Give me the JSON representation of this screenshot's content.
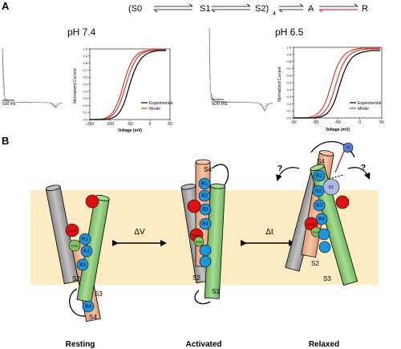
{
  "panel_a": {
    "label": "A",
    "scheme": {
      "s0": "(S0",
      "s1": "S1",
      "s2": "S2)",
      "sub4": "4",
      "a": "A",
      "r": "R"
    },
    "ph74": {
      "title": "pH 7.4",
      "scale_bar": "500 ms",
      "ylabel": "Normalized Current",
      "xlabel": "Voltage (mV)",
      "yticks": [
        "0.0",
        "0.1",
        "0.2",
        "0.3",
        "0.4",
        "0.5",
        "0.6",
        "0.7",
        "0.8",
        "0.9",
        "1.0"
      ],
      "xticks": [
        "-150",
        "-100",
        "-50",
        "0",
        "50"
      ],
      "legend": [
        "Experimental",
        "Model"
      ]
    },
    "ph65": {
      "title": "pH 6.5",
      "scale_bar": "500 ms",
      "ylabel": "Normalized Current",
      "xlabel": "Voltage (mV)",
      "yticks": [
        "0.0",
        "0.1",
        "0.2",
        "0.3",
        "0.4",
        "0.5",
        "0.6",
        "0.7",
        "0.8",
        "0.9",
        "1.0"
      ],
      "xticks": [
        "-50",
        "-50",
        "-50",
        "0",
        "50"
      ],
      "legend": [
        "Experimental",
        "Model"
      ]
    }
  },
  "panel_b": {
    "label": "B",
    "arrow_dv": "ΔV",
    "arrow_dt": "Δt",
    "question": "?",
    "states": {
      "resting": {
        "title": "Resting",
        "residues": [
          "R1",
          "R2",
          "R3",
          "R4",
          "E183",
          "F233"
        ],
        "helices": [
          "S2",
          "S3",
          "S4"
        ]
      },
      "activated": {
        "title": "Activated",
        "residues": [
          "R1",
          "R2",
          "R3",
          "R4",
          "E183",
          "F233"
        ],
        "helices": [
          "S2",
          "S3",
          "S4"
        ]
      },
      "relaxed": {
        "title": "Relaxed",
        "residues": [
          "R1",
          "R2",
          "R3",
          "R4",
          "E183",
          "F233",
          "D1"
        ],
        "helices": [
          "S2",
          "S3",
          "S4"
        ]
      }
    }
  },
  "colors": {
    "membrane": "#fdebc4",
    "helix_gray": "#a7a7a7",
    "helix_green": "#8fcc7b",
    "helix_s4": "#f0b08c",
    "arginine_blue": "#1d95dd",
    "acidic_red": "#e01010",
    "phe_green": "#84c45e",
    "model_red": "#d43c2c"
  }
}
